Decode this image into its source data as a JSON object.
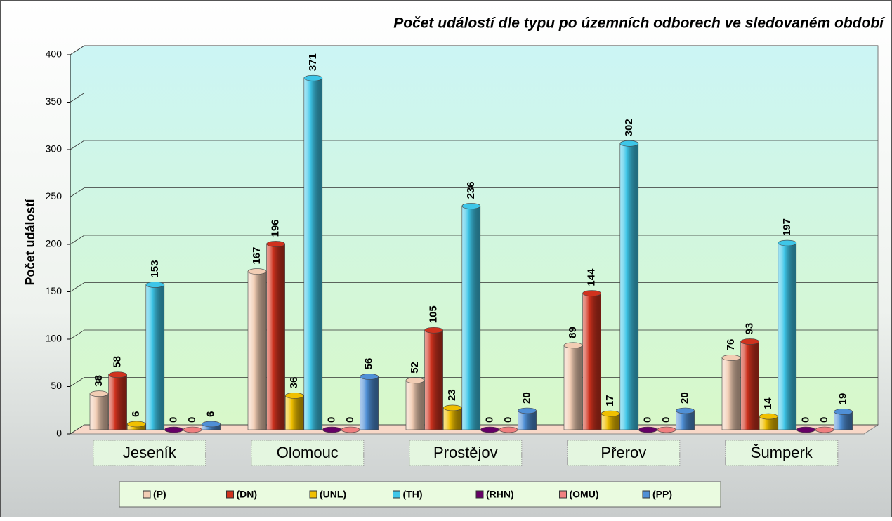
{
  "chart_data": {
    "type": "bar",
    "title": "Počet událostí dle typu po územních odborech ve sledovaném období",
    "y_label": "Počet událostí",
    "categories": [
      "Jeseník",
      "Olomouc",
      "Prostějov",
      "Přerov",
      "Šumperk"
    ],
    "series": [
      {
        "name": "(P)",
        "color": "#f2cdb4",
        "values": [
          38,
          167,
          52,
          89,
          76
        ]
      },
      {
        "name": "(DN)",
        "color": "#d0321e",
        "values": [
          58,
          196,
          105,
          144,
          93
        ]
      },
      {
        "name": "(UNL)",
        "color": "#f0c000",
        "values": [
          6,
          36,
          23,
          17,
          14
        ]
      },
      {
        "name": "(TH)",
        "color": "#3ec6e8",
        "values": [
          153,
          371,
          236,
          302,
          197
        ]
      },
      {
        "name": "(RHN)",
        "color": "#660066",
        "values": [
          0,
          0,
          0,
          0,
          0
        ]
      },
      {
        "name": "(OMU)",
        "color": "#f08080",
        "values": [
          0,
          0,
          0,
          0,
          0
        ]
      },
      {
        "name": "(PP)",
        "color": "#4f8fd6",
        "values": [
          6,
          56,
          20,
          20,
          19
        ]
      }
    ],
    "ylim": [
      0,
      400
    ],
    "yticks": [
      0,
      50,
      100,
      150,
      200,
      250,
      300,
      350,
      400
    ],
    "grid": true,
    "legend": "bottom"
  }
}
